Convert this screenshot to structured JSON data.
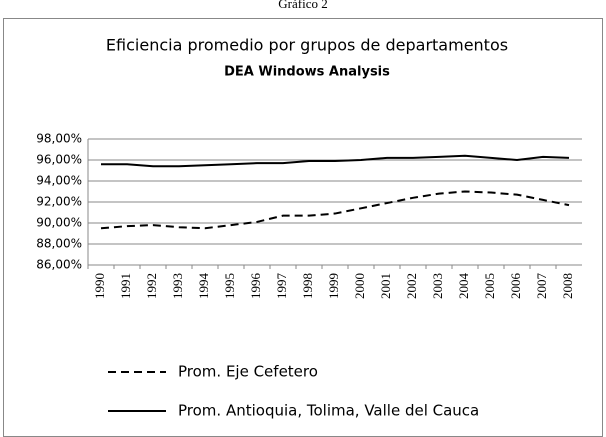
{
  "caption": "Gráfico 2",
  "chart_data": {
    "type": "line",
    "title": "Eficiencia promedio por grupos de departamentos",
    "subtitle": "DEA Windows Analysis",
    "categories": [
      "1990",
      "1991",
      "1992",
      "1993",
      "1994",
      "1995",
      "1996",
      "1997",
      "1998",
      "1999",
      "2000",
      "2001",
      "2002",
      "2003",
      "2004",
      "2005",
      "2006",
      "2007",
      "2008"
    ],
    "series": [
      {
        "name": "Prom. Eje Cefetero",
        "color": "#000000",
        "line_style": "dashed",
        "values": [
          89.5,
          89.7,
          89.8,
          89.6,
          89.5,
          89.8,
          90.1,
          90.7,
          90.7,
          90.9,
          91.4,
          91.9,
          92.4,
          92.8,
          93.0,
          92.9,
          92.7,
          92.2,
          91.7
        ]
      },
      {
        "name": "Prom. Antioquia, Tolima, Valle del Cauca",
        "color": "#000000",
        "line_style": "solid",
        "values": [
          95.6,
          95.6,
          95.4,
          95.4,
          95.5,
          95.6,
          95.7,
          95.7,
          95.9,
          95.9,
          96.0,
          96.2,
          96.2,
          96.3,
          96.4,
          96.2,
          96.0,
          96.3,
          96.2
        ]
      }
    ],
    "ylim": [
      86,
      98
    ],
    "yticks": [
      {
        "value": 86,
        "label": "86,00%"
      },
      {
        "value": 88,
        "label": "88,00%"
      },
      {
        "value": 90,
        "label": "90,00%"
      },
      {
        "value": 92,
        "label": "92,00%"
      },
      {
        "value": 94,
        "label": "94,00%"
      },
      {
        "value": 96,
        "label": "96,00%"
      },
      {
        "value": 98,
        "label": "98,00%"
      }
    ],
    "grid": true,
    "legend": "bottom"
  }
}
